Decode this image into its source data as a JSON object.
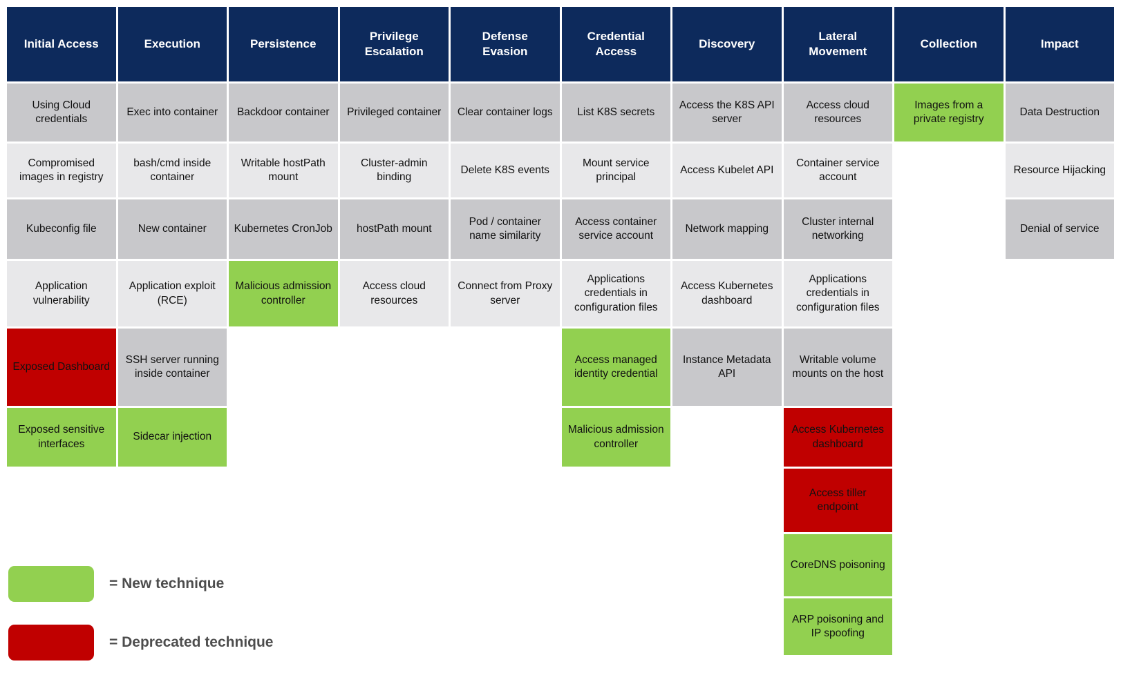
{
  "colors": {
    "header_bg": "#0d2a5c",
    "gray": "#c8c8cb",
    "lightgray": "#e8e8ea",
    "green": "#92d050",
    "red": "#c00000"
  },
  "columns": [
    {
      "header": "Initial Access",
      "cells": [
        {
          "text": "Using Cloud credentials",
          "type": "gray"
        },
        {
          "text": "Compromised images in registry",
          "type": "lightgray"
        },
        {
          "text": "Kubeconfig file",
          "type": "gray"
        },
        {
          "text": "Application vulnerability",
          "type": "lightgray"
        },
        {
          "text": "Exposed Dashboard",
          "type": "red"
        },
        {
          "text": "Exposed sensitive interfaces",
          "type": "green"
        }
      ]
    },
    {
      "header": "Execution",
      "cells": [
        {
          "text": "Exec into container",
          "type": "gray"
        },
        {
          "text": "bash/cmd inside container",
          "type": "lightgray"
        },
        {
          "text": "New container",
          "type": "gray"
        },
        {
          "text": "Application exploit (RCE)",
          "type": "lightgray"
        },
        {
          "text": "SSH server running inside container",
          "type": "gray"
        },
        {
          "text": "Sidecar injection",
          "type": "green"
        }
      ]
    },
    {
      "header": "Persistence",
      "cells": [
        {
          "text": "Backdoor container",
          "type": "gray"
        },
        {
          "text": "Writable hostPath mount",
          "type": "lightgray"
        },
        {
          "text": "Kubernetes CronJob",
          "type": "gray"
        },
        {
          "text": "Malicious admission controller",
          "type": "green"
        }
      ]
    },
    {
      "header": "Privilege Escalation",
      "cells": [
        {
          "text": "Privileged container",
          "type": "gray"
        },
        {
          "text": "Cluster-admin binding",
          "type": "lightgray"
        },
        {
          "text": "hostPath mount",
          "type": "gray"
        },
        {
          "text": "Access cloud resources",
          "type": "lightgray"
        }
      ]
    },
    {
      "header": "Defense Evasion",
      "cells": [
        {
          "text": "Clear container logs",
          "type": "gray"
        },
        {
          "text": "Delete K8S events",
          "type": "lightgray"
        },
        {
          "text": "Pod / container name similarity",
          "type": "gray"
        },
        {
          "text": "Connect from Proxy server",
          "type": "lightgray"
        }
      ]
    },
    {
      "header": "Credential Access",
      "cells": [
        {
          "text": "List K8S secrets",
          "type": "gray"
        },
        {
          "text": "Mount service principal",
          "type": "lightgray"
        },
        {
          "text": "Access container service account",
          "type": "gray"
        },
        {
          "text": "Applications credentials in configuration files",
          "type": "lightgray"
        },
        {
          "text": "Access managed identity credential",
          "type": "green"
        },
        {
          "text": "Malicious admission controller",
          "type": "green"
        }
      ]
    },
    {
      "header": "Discovery",
      "cells": [
        {
          "text": "Access the K8S API server",
          "type": "gray"
        },
        {
          "text": "Access Kubelet API",
          "type": "lightgray"
        },
        {
          "text": "Network mapping",
          "type": "gray"
        },
        {
          "text": "Access Kubernetes dashboard",
          "type": "lightgray"
        },
        {
          "text": "Instance Metadata API",
          "type": "gray"
        }
      ]
    },
    {
      "header": "Lateral Movement",
      "cells": [
        {
          "text": "Access cloud resources",
          "type": "gray"
        },
        {
          "text": "Container service account",
          "type": "lightgray"
        },
        {
          "text": "Cluster internal networking",
          "type": "gray"
        },
        {
          "text": "Applications credentials in configuration files",
          "type": "lightgray"
        },
        {
          "text": "Writable volume mounts on the host",
          "type": "gray"
        },
        {
          "text": "Access Kubernetes dashboard",
          "type": "red"
        },
        {
          "text": "Access tiller endpoint",
          "type": "red"
        },
        {
          "text": "CoreDNS poisoning",
          "type": "green"
        },
        {
          "text": "ARP poisoning and IP spoofing",
          "type": "green"
        }
      ]
    },
    {
      "header": "Collection",
      "cells": [
        {
          "text": "Images from a private registry",
          "type": "green"
        }
      ]
    },
    {
      "header": "Impact",
      "cells": [
        {
          "text": "Data Destruction",
          "type": "gray"
        },
        {
          "text": "Resource Hijacking",
          "type": "lightgray"
        },
        {
          "text": "Denial of service",
          "type": "gray"
        }
      ]
    }
  ],
  "legend": [
    {
      "label": "= New technique",
      "swatch": "green"
    },
    {
      "label": "= Deprecated technique",
      "swatch": "red"
    }
  ]
}
